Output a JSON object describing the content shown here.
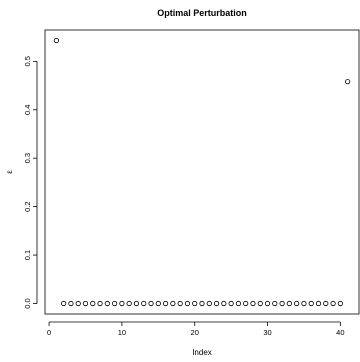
{
  "chart_data": {
    "type": "scatter",
    "title": "Optimal Perturbation",
    "xlabel": "Index",
    "ylabel": "ε",
    "xlim": [
      -0.56,
      42.56
    ],
    "ylim": [
      -0.0217,
      0.5647
    ],
    "xticks": [
      0,
      10,
      20,
      30,
      40
    ],
    "xtick_labels": [
      "0",
      "10",
      "20",
      "30",
      "40"
    ],
    "yticks": [
      0.0,
      0.1,
      0.2,
      0.3,
      0.4,
      0.5
    ],
    "ytick_labels": [
      "0.0",
      "0.1",
      "0.2",
      "0.3",
      "0.4",
      "0.5"
    ],
    "grid": false,
    "marker": "open-circle",
    "x": [
      1,
      2,
      3,
      4,
      5,
      6,
      7,
      8,
      9,
      10,
      11,
      12,
      13,
      14,
      15,
      16,
      17,
      18,
      19,
      20,
      21,
      22,
      23,
      24,
      25,
      26,
      27,
      28,
      29,
      30,
      31,
      32,
      33,
      34,
      35,
      36,
      37,
      38,
      39,
      40,
      41
    ],
    "values": [
      0.543,
      0,
      0,
      0,
      0,
      0,
      0,
      0,
      0,
      0,
      0,
      0,
      0,
      0,
      0,
      0,
      0,
      0,
      0,
      0,
      0,
      0,
      0,
      0,
      0,
      0,
      0,
      0,
      0,
      0,
      0,
      0,
      0,
      0,
      0,
      0,
      0,
      0,
      0,
      0,
      0.458
    ]
  }
}
